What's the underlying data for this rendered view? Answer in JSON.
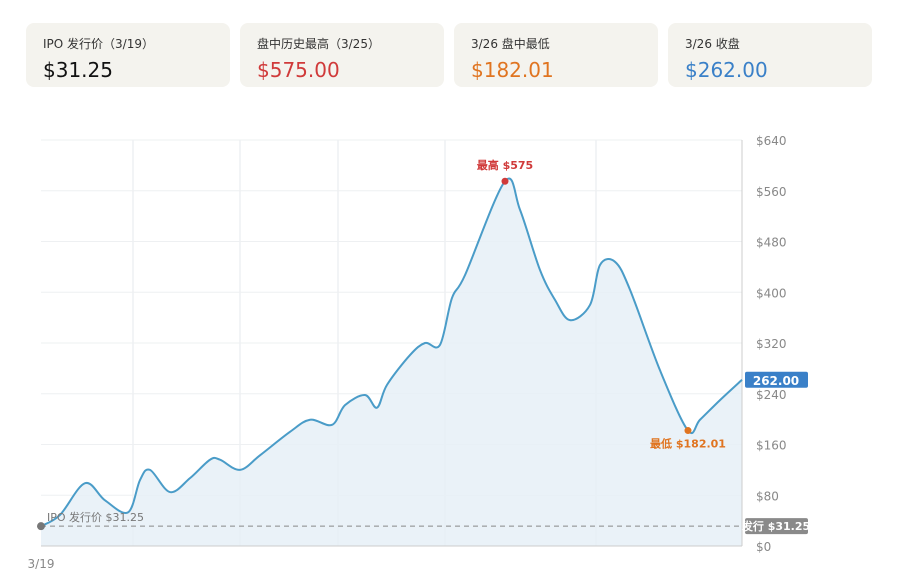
{
  "cards": [
    {
      "label": "IPO 发行价（3/19）",
      "value": "$31.25",
      "color": "#111111"
    },
    {
      "label": "盘中历史最高（3/25）",
      "value": "$575.00",
      "color": "#d03a3a"
    },
    {
      "label": "3/26 盘中最低",
      "value": "$182.01",
      "color": "#e07420"
    },
    {
      "label": "3/26 收盘",
      "value": "$262.00",
      "color": "#3a80c8"
    }
  ],
  "chart_data": {
    "type": "area",
    "xlabel": "",
    "ylabel": "",
    "x_tick_labels": [
      "3/19"
    ],
    "ylim": [
      0,
      640
    ],
    "y_ticks": [
      0,
      80,
      160,
      240,
      320,
      400,
      480,
      560,
      640
    ],
    "y_tick_labels": [
      "$0",
      "$80",
      "$160",
      "$240",
      "$320",
      "$400",
      "$480",
      "$560",
      "$640"
    ],
    "grid": true,
    "values": [
      31.25,
      49,
      99,
      72,
      53,
      104,
      120,
      85,
      107,
      136,
      136,
      120,
      143,
      180,
      199,
      191,
      222,
      238,
      218,
      254,
      301,
      320,
      317,
      391,
      427,
      575,
      530,
      435,
      388,
      356,
      380,
      443,
      448,
      404,
      277,
      182.01,
      199,
      230,
      262
    ],
    "line_color": "#4a9cc8",
    "annotations": {
      "high": {
        "label": "最高 $575",
        "value": 575,
        "color": "#d03a3a"
      },
      "low": {
        "label": "最低 $182.01",
        "value": 182.01,
        "color": "#e07420"
      },
      "ipo": {
        "label": "IPO 发行价 $31.25",
        "value": 31.25
      },
      "ipo_axis_tag": "发行 $31.25",
      "last_tag": "262.00"
    }
  }
}
